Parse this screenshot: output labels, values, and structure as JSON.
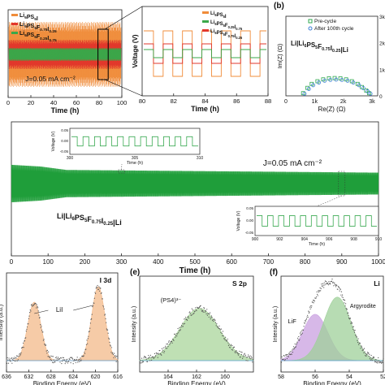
{
  "chart_data": [
    {
      "panel": "a",
      "type": "line",
      "xlabel": "Time (h)",
      "ylabel": "Voltage (V)",
      "xlim": [
        0,
        100
      ],
      "xticks": [
        "0",
        "20",
        "40",
        "60",
        "80",
        "100"
      ],
      "annotation": "J=0.05 mA cm⁻²",
      "legend": [
        "Li6PS5I",
        "Li6PS5F0.75I0.25",
        "Li6PS5F0.25I0.75"
      ],
      "series": [
        {
          "name": "Li6PS5I",
          "color": "#f08c3a",
          "amplitude_rel": 1.0
        },
        {
          "name": "Li6PS5F0.75I0.25",
          "color": "#e2372b",
          "amplitude_rel": 0.45
        },
        {
          "name": "Li6PS5F0.25I0.75",
          "color": "#3aa84a",
          "amplitude_rel": 0.2
        }
      ]
    },
    {
      "panel": "a-inset",
      "type": "line",
      "xlabel": "Time (h)",
      "ylabel": "Voltage (V)",
      "xlim": [
        80,
        88
      ],
      "xticks": [
        "80",
        "82",
        "84",
        "86",
        "88"
      ],
      "legend": [
        "Li6PS5I",
        "Li6PS5F0.25I0.75",
        "Li6PS5F0.75I0.25"
      ]
    },
    {
      "panel": "b",
      "type": "scatter",
      "xlabel": "Re(Z) (Ω)",
      "ylabel": "Im(Z) (Ω)",
      "xlim": [
        0,
        3.2
      ],
      "ylim": [
        0,
        3
      ],
      "xticks": [
        "0",
        "1k",
        "2k",
        "3k"
      ],
      "yticks": [
        "0",
        "1k",
        "2k",
        "3k"
      ],
      "legend": [
        "Pre-cycle",
        "After 100th cycle"
      ],
      "annotation": "Li|Li6PS5F0.75I0.25|Li",
      "series": [
        {
          "name": "Pre-cycle",
          "color": "#2fa84f",
          "x": [
            0.6,
            0.75,
            0.9,
            1.1,
            1.3,
            1.5,
            1.7,
            1.9,
            2.1,
            2.3,
            2.5,
            2.65,
            2.8,
            2.9
          ],
          "y": [
            0.1,
            0.3,
            0.45,
            0.55,
            0.62,
            0.66,
            0.67,
            0.66,
            0.62,
            0.55,
            0.45,
            0.33,
            0.2,
            0.1
          ]
        },
        {
          "name": "After 100th cycle",
          "color": "#3d7fd6",
          "x": [
            0.65,
            0.8,
            0.95,
            1.15,
            1.35,
            1.55,
            1.75,
            1.95,
            2.15,
            2.35,
            2.55,
            2.7,
            2.85,
            2.95
          ],
          "y": [
            0.08,
            0.26,
            0.4,
            0.5,
            0.57,
            0.6,
            0.61,
            0.6,
            0.57,
            0.5,
            0.4,
            0.29,
            0.17,
            0.08
          ]
        }
      ]
    },
    {
      "panel": "c",
      "type": "line",
      "xlabel": "Time (h)",
      "ylabel": "Voltage (V)",
      "xlim": [
        0,
        1000
      ],
      "xticks": [
        "0",
        "100",
        "200",
        "300",
        "400",
        "500",
        "600",
        "700",
        "800",
        "900",
        "1000"
      ],
      "annotation": "J=0.05 mA cm⁻²",
      "cell_label": "Li|Li6PS5F0.75I0.25|Li",
      "color": "#1f9e3a",
      "envelope": [
        [
          0,
          0.055
        ],
        [
          80,
          0.05
        ],
        [
          150,
          0.04
        ],
        [
          1000,
          0.032
        ]
      ],
      "insets": [
        {
          "xlim": [
            300,
            310
          ],
          "xticks": [
            "300",
            "305",
            "310"
          ],
          "yticks": [
            "0.05",
            "0.00",
            "-0.05"
          ],
          "xlabel": "Time (h)",
          "ylabel": "Voltage (V)"
        },
        {
          "xlim": [
            900,
            910
          ],
          "xticks": [
            "900",
            "902",
            "904",
            "906",
            "908",
            "910"
          ],
          "yticks": [
            "0.05",
            "0.00",
            "-0.05"
          ],
          "xlabel": "Time (h)",
          "ylabel": "Voltage (V)"
        }
      ]
    },
    {
      "panel": "d",
      "type": "area",
      "title": "I 3d",
      "xlabel": "Binding Energy (eV)",
      "ylabel": "Intensity (a.u.)",
      "xlim": [
        636,
        616
      ],
      "xticks": [
        "636",
        "632",
        "628",
        "624",
        "620",
        "616"
      ],
      "peaks": [
        {
          "label": "LiI",
          "center": 631,
          "width": 1.2,
          "height": 0.75
        },
        {
          "label": "LiI",
          "center": 619.5,
          "width": 1.2,
          "height": 0.95
        }
      ],
      "color": "#f3b98a"
    },
    {
      "panel": "e",
      "type": "area",
      "title": "S 2p",
      "xlabel": "Binding Energy (eV)",
      "ylabel": "Intensity (a.u.)",
      "xlim": [
        166,
        158
      ],
      "xticks": [
        "164",
        "162",
        "160"
      ],
      "peaks": [
        {
          "label": "(PS4)³⁻",
          "center": 161.8,
          "width": 1.4,
          "height": 0.7
        }
      ],
      "color": "#a9d59b"
    },
    {
      "panel": "f",
      "type": "area",
      "title": "Li",
      "xlabel": "Binding Energy (eV)",
      "ylabel": "Intensity (a.u.)",
      "xlim": [
        58,
        52
      ],
      "xticks": [
        "58",
        "56",
        "54",
        "52"
      ],
      "peaks": [
        {
          "label": "LiF",
          "center": 56,
          "width": 0.75,
          "height": 0.62,
          "color": "#c9a0e0"
        },
        {
          "label": "Argyrodite",
          "center": 54.7,
          "width": 0.8,
          "height": 0.85,
          "color": "#9fd09a"
        }
      ]
    }
  ],
  "labels": {
    "panel_b": "(b)",
    "panel_e": "(e)",
    "panel_f": "(f)"
  }
}
